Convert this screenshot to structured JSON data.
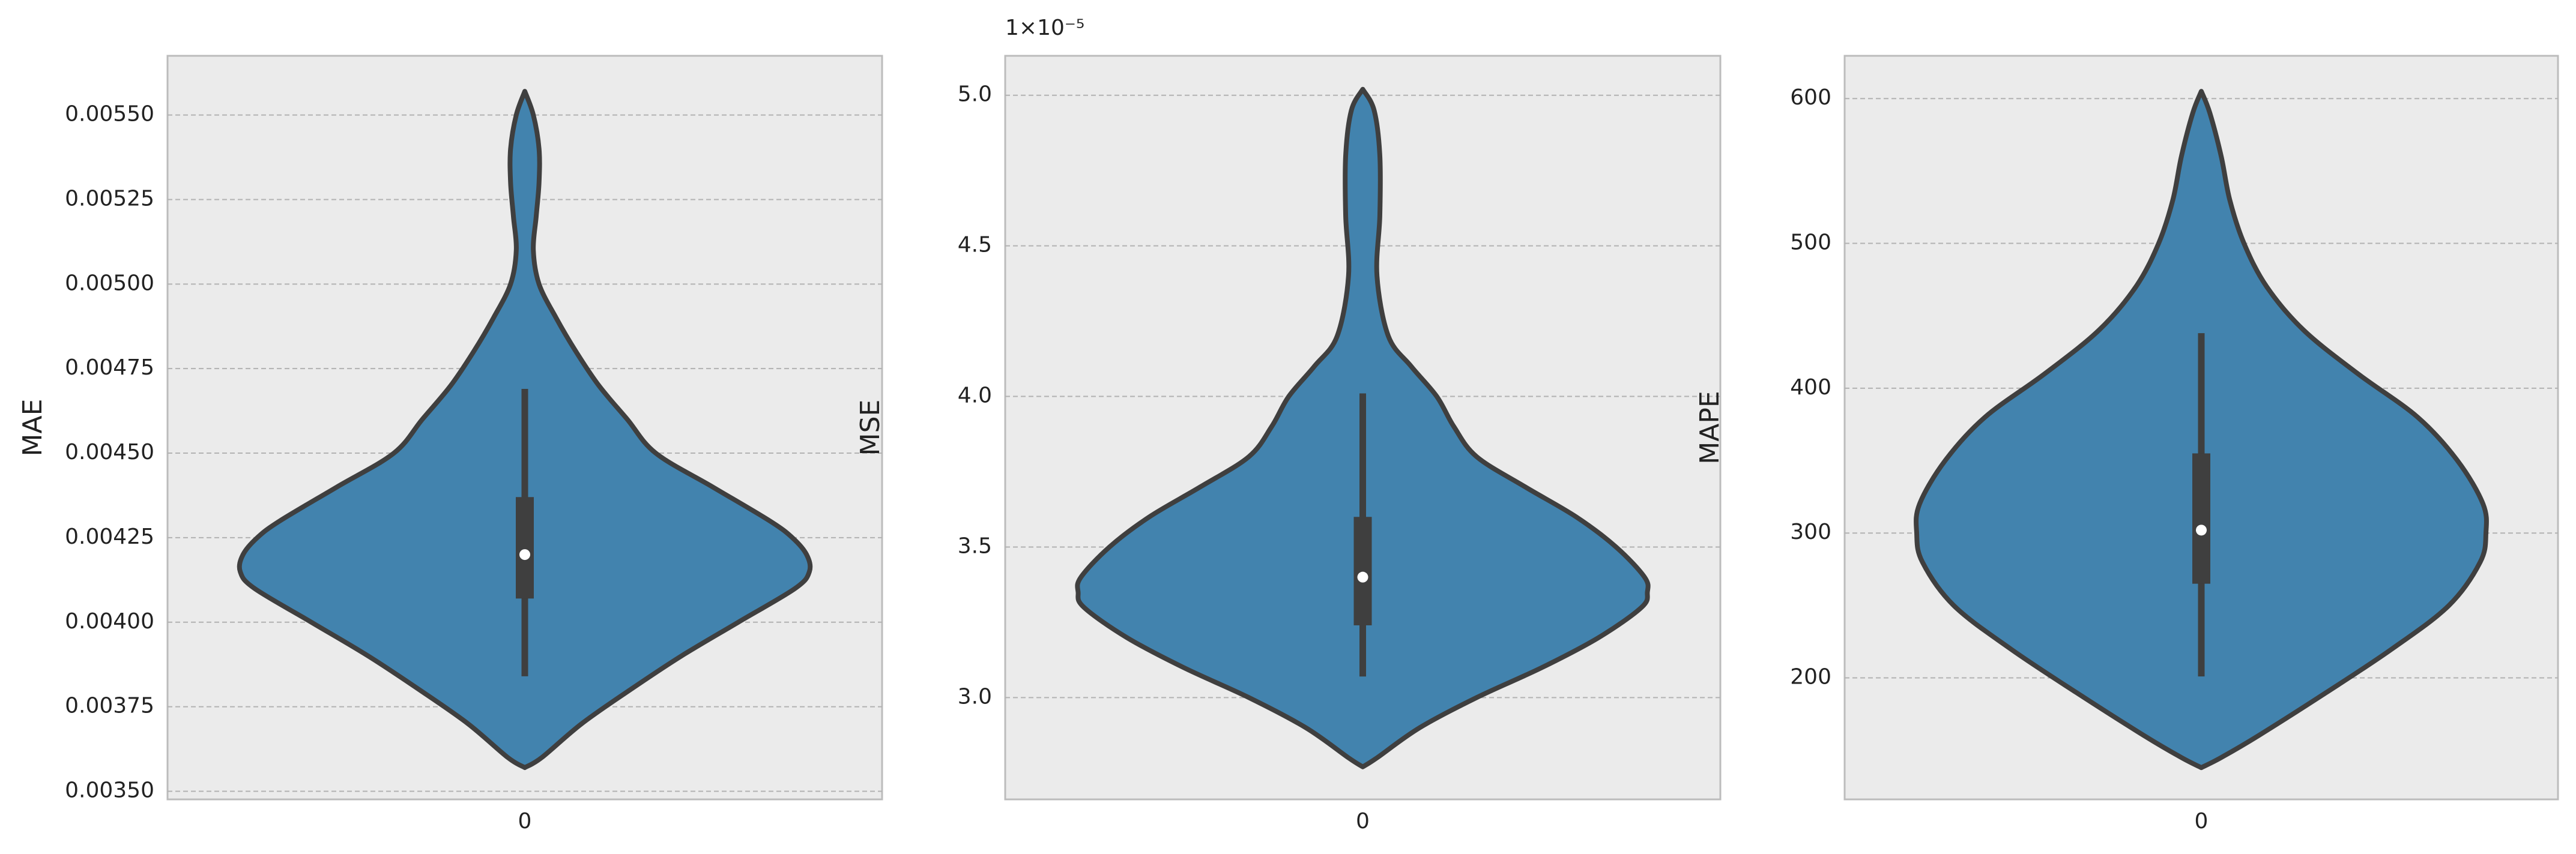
{
  "chart_data": [
    {
      "type": "violin",
      "ylabel": "MAE",
      "categories": [
        "0"
      ],
      "color": "#4283ae",
      "grid": true,
      "ylim": [
        0.003476,
        0.005675
      ],
      "yticks": [
        {
          "value": 0.0035,
          "label": "0.00350"
        },
        {
          "value": 0.00375,
          "label": "0.00375"
        },
        {
          "value": 0.004,
          "label": "0.00400"
        },
        {
          "value": 0.00425,
          "label": "0.00425"
        },
        {
          "value": 0.0045,
          "label": "0.00450"
        },
        {
          "value": 0.00475,
          "label": "0.00475"
        },
        {
          "value": 0.005,
          "label": "0.00500"
        },
        {
          "value": 0.00525,
          "label": "0.00525"
        },
        {
          "value": 0.0055,
          "label": "0.00550"
        }
      ],
      "violin": {
        "y": [
          0.00557,
          0.0055,
          0.0054,
          0.0053,
          0.0052,
          0.0051,
          0.005,
          0.0049,
          0.0048,
          0.0047,
          0.0046,
          0.0045,
          0.0044,
          0.0043,
          0.00425,
          0.0042,
          0.00415,
          0.0041,
          0.004,
          0.0039,
          0.0038,
          0.0037,
          0.0036,
          0.00357
        ],
        "density": [
          0,
          0.03,
          0.05,
          0.05,
          0.04,
          0.03,
          0.05,
          0.11,
          0.18,
          0.26,
          0.36,
          0.46,
          0.66,
          0.86,
          0.94,
          0.99,
          1,
          0.95,
          0.75,
          0.55,
          0.37,
          0.2,
          0.06,
          0
        ]
      },
      "box": {
        "whisker_low": 0.00384,
        "q1": 0.00407,
        "median": 0.0042,
        "q3": 0.00437,
        "whisker_high": 0.00469
      }
    },
    {
      "type": "violin",
      "ylabel": "MSE",
      "categories": [
        "0"
      ],
      "color": "#4283ae",
      "grid": true,
      "offset_text": "1×10⁻⁵",
      "ylim": [
        2.662,
        5.131
      ],
      "yticks": [
        {
          "value": 3,
          "label": "3.0"
        },
        3.5,
        {
          "value": 4,
          "label": "4.0"
        },
        4.5,
        {
          "value": 5,
          "label": "5.0"
        }
      ],
      "violin": {
        "y": [
          5.02,
          4.95,
          4.8,
          4.6,
          4.4,
          4.2,
          4.1,
          4.0,
          3.9,
          3.8,
          3.7,
          3.6,
          3.5,
          3.4,
          3.35,
          3.3,
          3.2,
          3.1,
          3.0,
          2.9,
          2.8,
          2.77
        ],
        "density": [
          0,
          0.04,
          0.06,
          0.06,
          0.05,
          0.09,
          0.17,
          0.26,
          0.32,
          0.4,
          0.57,
          0.75,
          0.89,
          0.99,
          1,
          0.98,
          0.83,
          0.63,
          0.4,
          0.2,
          0.05,
          0
        ]
      },
      "box": {
        "whisker_low": 3.07,
        "q1": 3.24,
        "median": 3.4,
        "q3": 3.6,
        "whisker_high": 4.01
      }
    },
    {
      "type": "violin",
      "ylabel": "MAPE",
      "categories": [
        "0"
      ],
      "color": "#4283ae",
      "grid": true,
      "ylim": [
        116.1,
        629.5
      ],
      "yticks": [
        200,
        300,
        400,
        500,
        600
      ],
      "violin": {
        "y": [
          605,
          590,
          560,
          530,
          500,
          470,
          440,
          410,
          380,
          350,
          320,
          300,
          280,
          250,
          220,
          190,
          160,
          145,
          138
        ],
        "density": [
          0,
          0.03,
          0.07,
          0.1,
          0.15,
          0.23,
          0.36,
          0.55,
          0.76,
          0.9,
          0.99,
          1,
          0.98,
          0.87,
          0.67,
          0.44,
          0.2,
          0.07,
          0
        ]
      },
      "box": {
        "whisker_low": 201,
        "q1": 265,
        "median": 302,
        "q3": 355,
        "whisker_high": 438
      }
    }
  ]
}
